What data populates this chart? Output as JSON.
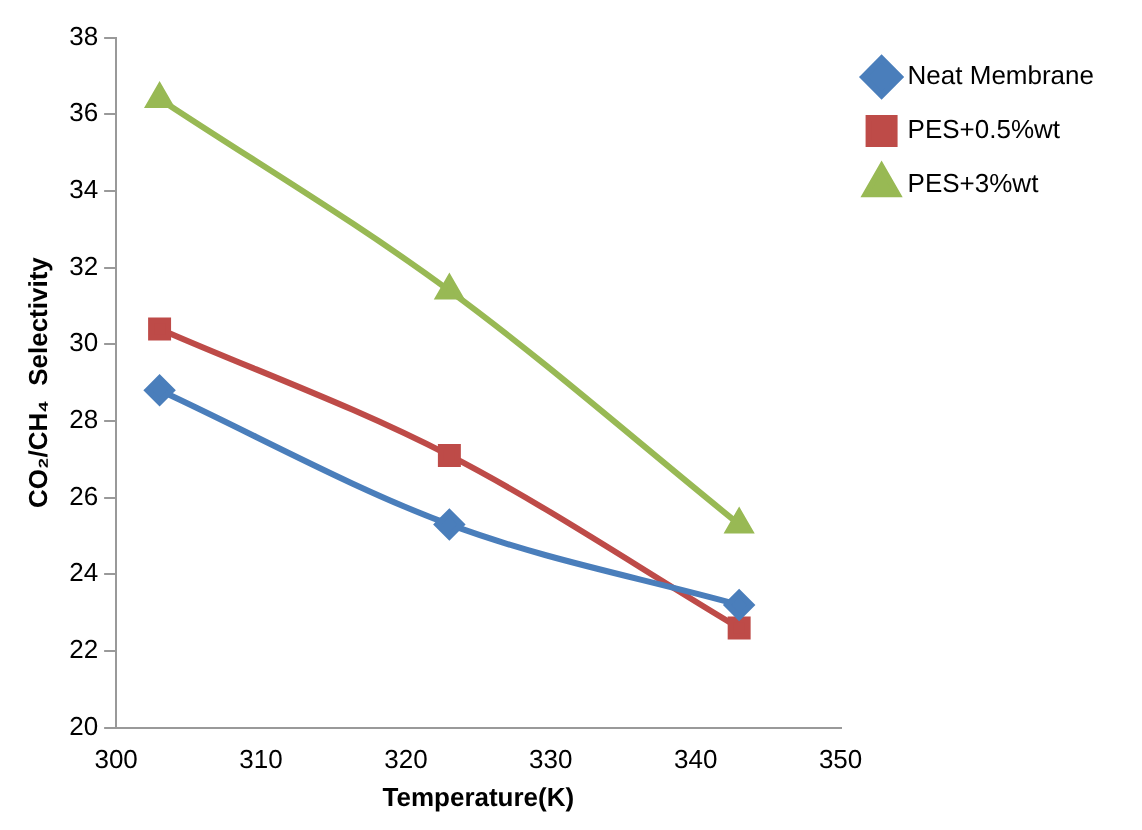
{
  "chart_data": {
    "type": "line",
    "xlabel": "Temperature(K)",
    "ylabel": "CO₂/CH₄  Selectivity",
    "x": [
      303,
      323,
      343
    ],
    "xlim": [
      300,
      350
    ],
    "xticks": [
      300,
      310,
      320,
      330,
      340,
      350
    ],
    "ylim": [
      20,
      38
    ],
    "yticks": [
      20,
      22,
      24,
      26,
      28,
      30,
      32,
      34,
      36,
      38
    ],
    "grid": false,
    "legend": "top right",
    "line_style": "solid",
    "series": [
      {
        "name": "Neat Membrane",
        "color": "#4a7ebb",
        "marker": "diamond",
        "values": [
          28.8,
          25.3,
          23.2
        ]
      },
      {
        "name": "PES+0.5%wt",
        "color": "#be4b48",
        "marker": "square",
        "values": [
          30.4,
          27.1,
          22.6
        ]
      },
      {
        "name": "PES+3%wt",
        "color": "#98b954",
        "marker": "triangle",
        "values": [
          36.4,
          31.4,
          25.3
        ]
      }
    ]
  }
}
